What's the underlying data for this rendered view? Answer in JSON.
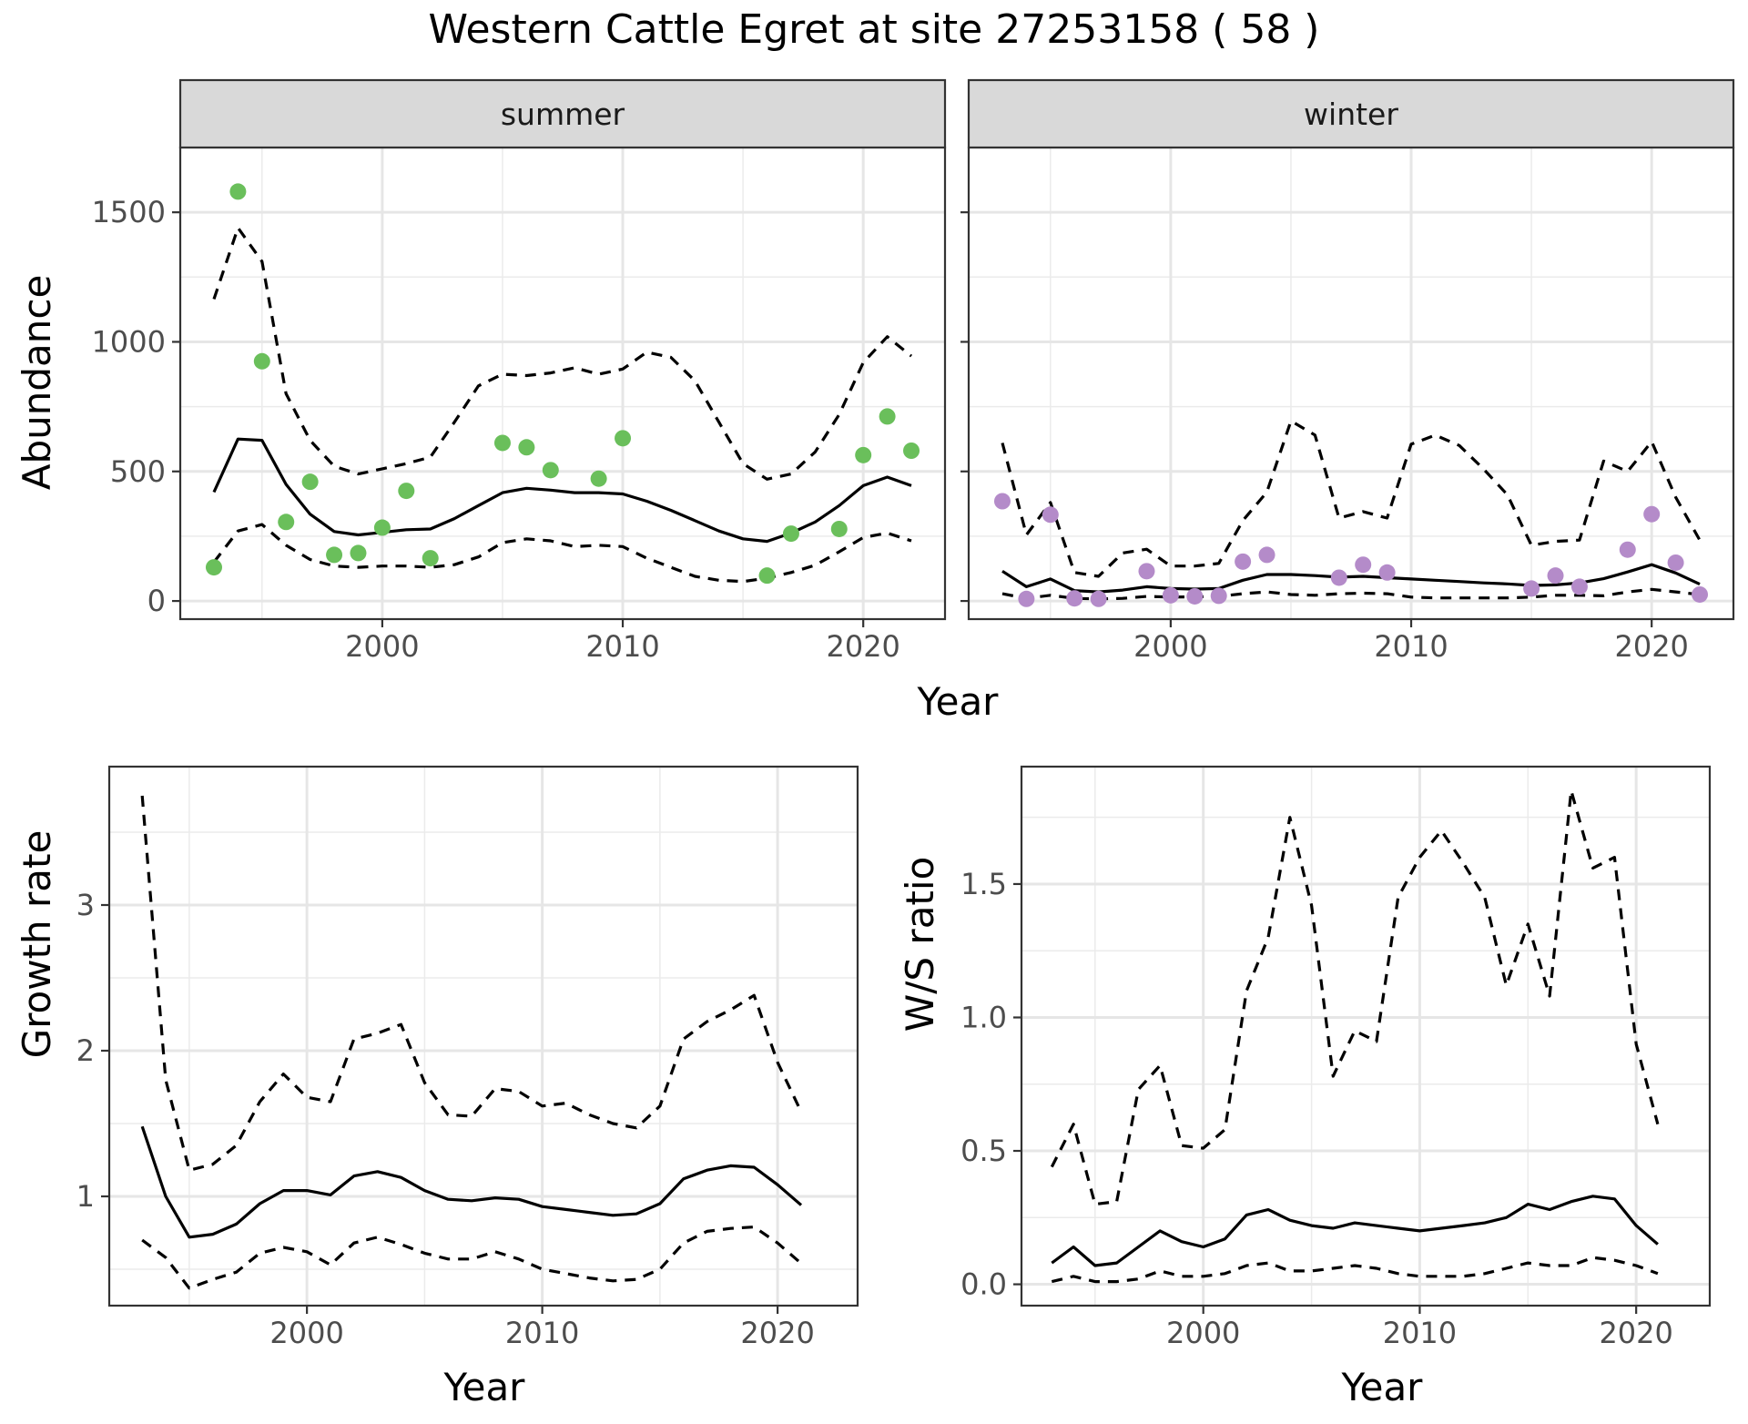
{
  "title": "Western Cattle Egret at site 27253158 ( 58 )",
  "chart_data": [
    {
      "type": "scatter",
      "panel": "summer",
      "facet_label": "summer",
      "xlabel": "Year",
      "ylabel": "Abundance",
      "xlim": [
        1991.6,
        2023.4
      ],
      "ylim": [
        -70,
        1750
      ],
      "xticks": [
        2000,
        2010,
        2020
      ],
      "yticks": [
        0,
        500,
        1000,
        1500
      ],
      "point_color": "#6abf5b",
      "points": {
        "x": [
          1993,
          1994,
          1995,
          1996,
          1997,
          1998,
          1999,
          2000,
          2001,
          2002,
          2005,
          2006,
          2007,
          2009,
          2010,
          2016,
          2017,
          2019,
          2020,
          2021,
          2022
        ],
        "y": [
          130,
          1580,
          925,
          305,
          460,
          178,
          185,
          283,
          425,
          165,
          610,
          593,
          505,
          472,
          628,
          98,
          260,
          278,
          563,
          712,
          580
        ]
      },
      "series": [
        {
          "name": "fit",
          "style": "solid",
          "x": [
            1993,
            1994,
            1995,
            1996,
            1997,
            1998,
            1999,
            2000,
            2001,
            2002,
            2003,
            2004,
            2005,
            2006,
            2007,
            2008,
            2009,
            2010,
            2011,
            2012,
            2013,
            2014,
            2015,
            2016,
            2017,
            2018,
            2019,
            2020,
            2021,
            2022
          ],
          "y": [
            420,
            625,
            620,
            450,
            335,
            268,
            255,
            265,
            275,
            278,
            318,
            368,
            418,
            435,
            428,
            418,
            418,
            413,
            385,
            350,
            310,
            270,
            240,
            230,
            262,
            305,
            368,
            445,
            478,
            445
          ]
        },
        {
          "name": "upper",
          "style": "dashed",
          "x": [
            1993,
            1994,
            1995,
            1996,
            1997,
            1998,
            1999,
            2000,
            2001,
            2002,
            2003,
            2004,
            2005,
            2006,
            2007,
            2008,
            2009,
            2010,
            2011,
            2012,
            2013,
            2014,
            2015,
            2016,
            2017,
            2018,
            2019,
            2020,
            2021,
            2022
          ],
          "y": [
            1165,
            1440,
            1310,
            800,
            620,
            520,
            490,
            510,
            530,
            555,
            690,
            830,
            875,
            870,
            880,
            900,
            875,
            895,
            960,
            940,
            850,
            690,
            530,
            470,
            490,
            575,
            720,
            920,
            1020,
            945
          ]
        },
        {
          "name": "lower",
          "style": "dashed",
          "x": [
            1993,
            1994,
            1995,
            1996,
            1997,
            1998,
            1999,
            2000,
            2001,
            2002,
            2003,
            2004,
            2005,
            2006,
            2007,
            2008,
            2009,
            2010,
            2011,
            2012,
            2013,
            2014,
            2015,
            2016,
            2017,
            2018,
            2019,
            2020,
            2021,
            2022
          ],
          "y": [
            150,
            270,
            295,
            215,
            160,
            135,
            130,
            135,
            135,
            130,
            140,
            170,
            225,
            240,
            232,
            210,
            215,
            210,
            165,
            130,
            95,
            80,
            75,
            88,
            110,
            138,
            190,
            245,
            262,
            232
          ]
        }
      ]
    },
    {
      "type": "scatter",
      "panel": "winter",
      "facet_label": "winter",
      "xlabel": "Year",
      "ylabel": "Abundance",
      "xlim": [
        1991.6,
        2023.4
      ],
      "ylim": [
        -70,
        1750
      ],
      "xticks": [
        2000,
        2010,
        2020
      ],
      "yticks": [
        0,
        500,
        1000,
        1500
      ],
      "point_color": "#b48bc9",
      "points": {
        "x": [
          1993,
          1994,
          1995,
          1996,
          1997,
          1999,
          2000,
          2001,
          2002,
          2003,
          2004,
          2007,
          2008,
          2009,
          2015,
          2016,
          2017,
          2019,
          2020,
          2021,
          2022
        ],
        "y": [
          385,
          8,
          333,
          10,
          8,
          115,
          22,
          18,
          20,
          152,
          178,
          90,
          140,
          110,
          48,
          98,
          55,
          198,
          335,
          148,
          25
        ]
      },
      "series": [
        {
          "name": "fit",
          "style": "solid",
          "x": [
            1993,
            1994,
            1995,
            1996,
            1997,
            1998,
            1999,
            2000,
            2001,
            2002,
            2003,
            2004,
            2005,
            2006,
            2007,
            2008,
            2009,
            2010,
            2011,
            2012,
            2013,
            2014,
            2015,
            2016,
            2017,
            2018,
            2019,
            2020,
            2021,
            2022
          ],
          "y": [
            115,
            55,
            85,
            40,
            35,
            42,
            55,
            48,
            46,
            48,
            80,
            102,
            102,
            98,
            92,
            95,
            90,
            85,
            80,
            75,
            70,
            66,
            60,
            62,
            70,
            86,
            112,
            140,
            108,
            65
          ]
        },
        {
          "name": "upper",
          "style": "dashed",
          "x": [
            1993,
            1994,
            1995,
            1996,
            1997,
            1998,
            1999,
            2000,
            2001,
            2002,
            2003,
            2004,
            2005,
            2006,
            2007,
            2008,
            2009,
            2010,
            2011,
            2012,
            2013,
            2014,
            2015,
            2016,
            2017,
            2018,
            2019,
            2020,
            2021,
            2022
          ],
          "y": [
            610,
            255,
            380,
            110,
            95,
            185,
            200,
            135,
            135,
            145,
            310,
            420,
            695,
            640,
            320,
            345,
            320,
            605,
            640,
            600,
            510,
            410,
            215,
            230,
            235,
            540,
            500,
            615,
            400,
            235
          ]
        },
        {
          "name": "lower",
          "style": "dashed",
          "x": [
            1993,
            1994,
            1995,
            1996,
            1997,
            1998,
            1999,
            2000,
            2001,
            2002,
            2003,
            2004,
            2005,
            2006,
            2007,
            2008,
            2009,
            2010,
            2011,
            2012,
            2013,
            2014,
            2015,
            2016,
            2017,
            2018,
            2019,
            2020,
            2021,
            2022
          ],
          "y": [
            28,
            10,
            22,
            10,
            8,
            10,
            18,
            15,
            16,
            18,
            28,
            35,
            25,
            22,
            28,
            30,
            28,
            15,
            12,
            12,
            12,
            12,
            15,
            22,
            22,
            20,
            35,
            45,
            35,
            25
          ]
        }
      ]
    },
    {
      "type": "line",
      "panel": "growth",
      "xlabel": "Year",
      "ylabel": "Growth rate",
      "xlim": [
        1991.6,
        2023.4
      ],
      "ylim": [
        0.25,
        3.95
      ],
      "xticks": [
        2000,
        2010,
        2020
      ],
      "yticks": [
        1,
        2,
        3
      ],
      "series": [
        {
          "name": "fit",
          "style": "solid",
          "x": [
            1993,
            1994,
            1995,
            1996,
            1997,
            1998,
            1999,
            2000,
            2001,
            2002,
            2003,
            2004,
            2005,
            2006,
            2007,
            2008,
            2009,
            2010,
            2011,
            2012,
            2013,
            2014,
            2015,
            2016,
            2017,
            2018,
            2019,
            2020,
            2021
          ],
          "y": [
            1.48,
            1.0,
            0.72,
            0.74,
            0.81,
            0.95,
            1.04,
            1.04,
            1.01,
            1.14,
            1.17,
            1.13,
            1.04,
            0.98,
            0.97,
            0.99,
            0.98,
            0.93,
            0.91,
            0.89,
            0.87,
            0.88,
            0.95,
            1.12,
            1.18,
            1.21,
            1.2,
            1.08,
            0.94
          ]
        },
        {
          "name": "upper",
          "style": "dashed",
          "x": [
            1993,
            1994,
            1995,
            1996,
            1997,
            1998,
            1999,
            2000,
            2001,
            2002,
            2003,
            2004,
            2005,
            2006,
            2007,
            2008,
            2009,
            2010,
            2011,
            2012,
            2013,
            2014,
            2015,
            2016,
            2017,
            2018,
            2019,
            2020,
            2021
          ],
          "y": [
            3.75,
            1.8,
            1.18,
            1.22,
            1.35,
            1.65,
            1.84,
            1.68,
            1.65,
            2.08,
            2.12,
            2.18,
            1.78,
            1.56,
            1.55,
            1.74,
            1.72,
            1.62,
            1.64,
            1.56,
            1.5,
            1.47,
            1.62,
            2.08,
            2.2,
            2.28,
            2.38,
            1.92,
            1.58
          ]
        },
        {
          "name": "lower",
          "style": "dashed",
          "x": [
            1993,
            1994,
            1995,
            1996,
            1997,
            1998,
            1999,
            2000,
            2001,
            2002,
            2003,
            2004,
            2005,
            2006,
            2007,
            2008,
            2009,
            2010,
            2011,
            2012,
            2013,
            2014,
            2015,
            2016,
            2017,
            2018,
            2019,
            2020,
            2021
          ],
          "y": [
            0.7,
            0.58,
            0.37,
            0.43,
            0.48,
            0.61,
            0.65,
            0.62,
            0.53,
            0.68,
            0.72,
            0.67,
            0.61,
            0.57,
            0.57,
            0.62,
            0.57,
            0.5,
            0.47,
            0.44,
            0.42,
            0.43,
            0.5,
            0.68,
            0.76,
            0.78,
            0.79,
            0.68,
            0.54
          ]
        }
      ]
    },
    {
      "type": "line",
      "panel": "ratio",
      "xlabel": "Year",
      "ylabel": "W/S ratio",
      "xlim": [
        1991.6,
        2023.4
      ],
      "ylim": [
        -0.08,
        1.94
      ],
      "xticks": [
        2000,
        2010,
        2020
      ],
      "yticks": [
        0.0,
        0.5,
        1.0,
        1.5
      ],
      "ytick_labels": [
        "0.0",
        "0.5",
        "1.0",
        "1.5"
      ],
      "series": [
        {
          "name": "fit",
          "style": "solid",
          "x": [
            1993,
            1994,
            1995,
            1996,
            1997,
            1998,
            1999,
            2000,
            2001,
            2002,
            2003,
            2004,
            2005,
            2006,
            2007,
            2008,
            2009,
            2010,
            2011,
            2012,
            2013,
            2014,
            2015,
            2016,
            2017,
            2018,
            2019,
            2020,
            2021
          ],
          "y": [
            0.08,
            0.14,
            0.07,
            0.08,
            0.14,
            0.2,
            0.16,
            0.14,
            0.17,
            0.26,
            0.28,
            0.24,
            0.22,
            0.21,
            0.23,
            0.22,
            0.21,
            0.2,
            0.21,
            0.22,
            0.23,
            0.25,
            0.3,
            0.28,
            0.31,
            0.33,
            0.32,
            0.22,
            0.15
          ]
        },
        {
          "name": "upper",
          "style": "dashed",
          "x": [
            1993,
            1994,
            1995,
            1996,
            1997,
            1998,
            1999,
            2000,
            2001,
            2002,
            2003,
            2004,
            2005,
            2006,
            2007,
            2008,
            2009,
            2010,
            2011,
            2012,
            2013,
            2014,
            2015,
            2016,
            2017,
            2018,
            2019,
            2020,
            2021
          ],
          "y": [
            0.44,
            0.6,
            0.3,
            0.31,
            0.73,
            0.82,
            0.52,
            0.51,
            0.58,
            1.1,
            1.3,
            1.75,
            1.42,
            0.78,
            0.95,
            0.91,
            1.45,
            1.6,
            1.7,
            1.58,
            1.45,
            1.12,
            1.35,
            1.08,
            1.85,
            1.56,
            1.6,
            0.9,
            0.6
          ]
        },
        {
          "name": "lower",
          "style": "dashed",
          "x": [
            1993,
            1994,
            1995,
            1996,
            1997,
            1998,
            1999,
            2000,
            2001,
            2002,
            2003,
            2004,
            2005,
            2006,
            2007,
            2008,
            2009,
            2010,
            2011,
            2012,
            2013,
            2014,
            2015,
            2016,
            2017,
            2018,
            2019,
            2020,
            2021
          ],
          "y": [
            0.01,
            0.03,
            0.01,
            0.01,
            0.02,
            0.05,
            0.03,
            0.03,
            0.04,
            0.07,
            0.08,
            0.05,
            0.05,
            0.06,
            0.07,
            0.06,
            0.04,
            0.03,
            0.03,
            0.03,
            0.04,
            0.06,
            0.08,
            0.07,
            0.07,
            0.1,
            0.09,
            0.07,
            0.04
          ]
        }
      ]
    }
  ]
}
